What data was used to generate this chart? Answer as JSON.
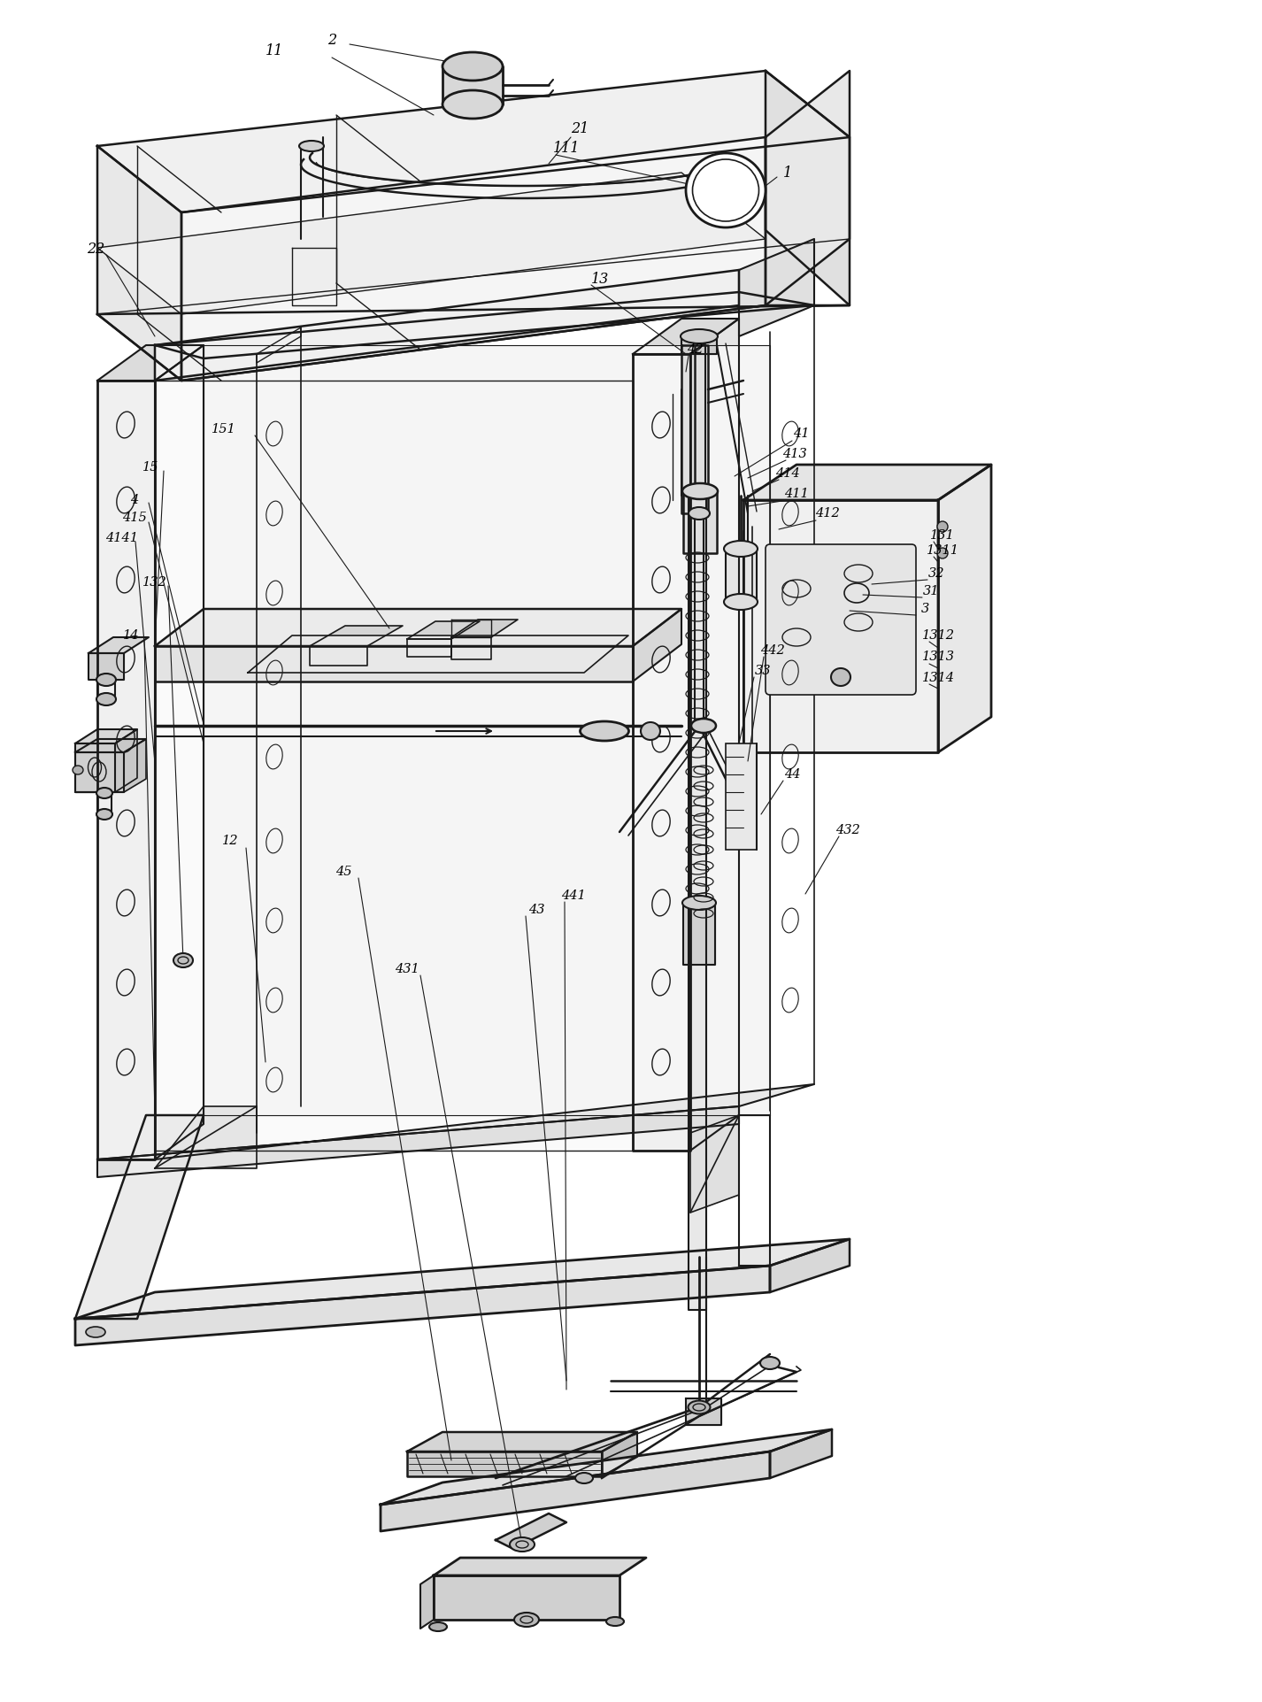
{
  "background_color": "#ffffff",
  "line_color": "#1a1a1a",
  "fig_width": 14.26,
  "fig_height": 19.23,
  "dpi": 100
}
